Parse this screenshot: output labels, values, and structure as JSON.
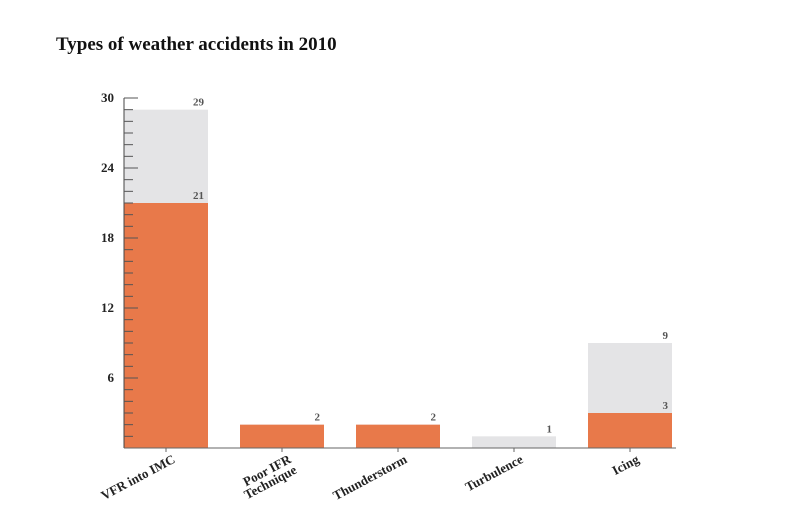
{
  "chart_data": {
    "type": "bar",
    "title": "Types of weather accidents in 2010",
    "xlabel": "",
    "ylabel": "",
    "ylim": [
      0,
      30
    ],
    "yticks": [
      6,
      12,
      18,
      24,
      30
    ],
    "grid": false,
    "categories": [
      "VFR into IMC",
      "Poor IFR Technique",
      "Thunderstorm",
      "Turbulence",
      "Icing"
    ],
    "category_lines": [
      [
        "VFR into IMC"
      ],
      [
        "Poor IFR",
        "Technique"
      ],
      [
        "Thunderstorm"
      ],
      [
        "Turbulence"
      ],
      [
        "Icing"
      ]
    ],
    "series": [
      {
        "values": [
          29,
          2,
          2,
          1,
          9
        ],
        "color": "#e4e4e6"
      },
      {
        "values": [
          21,
          2,
          2,
          0,
          3
        ],
        "color": "#e8794a"
      }
    ],
    "data_labels": [
      {
        "category": 0,
        "value": 29,
        "text": "29"
      },
      {
        "category": 0,
        "value": 21,
        "text": "21"
      },
      {
        "category": 1,
        "value": 2,
        "text": "2"
      },
      {
        "category": 2,
        "value": 2,
        "text": "2"
      },
      {
        "category": 3,
        "value": 1,
        "text": "1"
      },
      {
        "category": 4,
        "value": 9,
        "text": "9"
      },
      {
        "category": 4,
        "value": 3,
        "text": "3"
      }
    ]
  }
}
